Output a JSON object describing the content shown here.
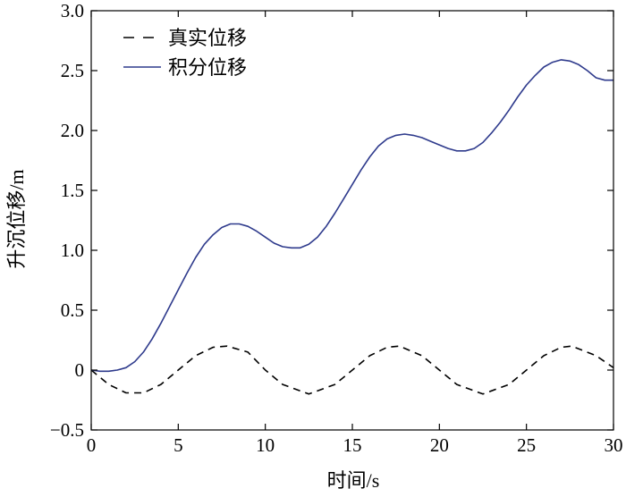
{
  "chart_data": {
    "type": "line",
    "title": "",
    "xlabel": "时间/s",
    "ylabel": "升沉位移/m",
    "xlim": [
      0,
      30
    ],
    "ylim": [
      -0.5,
      3.0
    ],
    "xticks": [
      0,
      5,
      10,
      15,
      20,
      25,
      30
    ],
    "xtick_labels": [
      "0",
      "5",
      "10",
      "15",
      "20",
      "25",
      "30"
    ],
    "yticks": [
      -0.5,
      0,
      0.5,
      1.0,
      1.5,
      2.0,
      2.5,
      3.0
    ],
    "ytick_labels": [
      "−0.5",
      "0",
      "0.5",
      "1.0",
      "1.5",
      "2.0",
      "2.5",
      "3.0"
    ],
    "grid": false,
    "legend_position": "top-left",
    "series": [
      {
        "name": "真实位移",
        "style": "dashed",
        "color": "#000000",
        "x": [
          0,
          1,
          2,
          3,
          4,
          5,
          6,
          7,
          7.8,
          9,
          10,
          11,
          12.5,
          14,
          15,
          16,
          17,
          17.7,
          19,
          20,
          21,
          22.5,
          24,
          25,
          26,
          27,
          27.6,
          29,
          30
        ],
        "y": [
          0,
          -0.12,
          -0.19,
          -0.19,
          -0.12,
          0,
          0.12,
          0.19,
          0.2,
          0.15,
          0,
          -0.12,
          -0.2,
          -0.12,
          0,
          0.12,
          0.19,
          0.2,
          0.12,
          0,
          -0.12,
          -0.2,
          -0.12,
          0,
          0.12,
          0.19,
          0.2,
          0.12,
          0.02
        ]
      },
      {
        "name": "积分位移",
        "style": "solid",
        "color": "#2e3a8c",
        "x": [
          0,
          0.5,
          1,
          1.5,
          2,
          2.5,
          3,
          3.5,
          4,
          4.5,
          5,
          5.5,
          6,
          6.5,
          7,
          7.5,
          8,
          8.5,
          9,
          9.5,
          10,
          10.5,
          11,
          11.5,
          12,
          12.5,
          13,
          13.5,
          14,
          14.5,
          15,
          15.5,
          16,
          16.5,
          17,
          17.5,
          18,
          18.5,
          19,
          19.5,
          20,
          20.5,
          21,
          21.5,
          22,
          22.5,
          23,
          23.5,
          24,
          24.5,
          25,
          25.5,
          26,
          26.5,
          27,
          27.5,
          28,
          28.5,
          29,
          29.5,
          30
        ],
        "y": [
          0,
          -0.01,
          -0.01,
          0,
          0.02,
          0.07,
          0.15,
          0.26,
          0.39,
          0.53,
          0.67,
          0.81,
          0.94,
          1.05,
          1.13,
          1.19,
          1.22,
          1.22,
          1.2,
          1.16,
          1.11,
          1.06,
          1.03,
          1.02,
          1.02,
          1.05,
          1.11,
          1.2,
          1.31,
          1.43,
          1.55,
          1.67,
          1.78,
          1.87,
          1.93,
          1.96,
          1.97,
          1.96,
          1.94,
          1.91,
          1.88,
          1.85,
          1.83,
          1.83,
          1.85,
          1.9,
          1.98,
          2.07,
          2.17,
          2.28,
          2.38,
          2.46,
          2.53,
          2.57,
          2.59,
          2.58,
          2.55,
          2.5,
          2.44,
          2.42,
          2.42
        ]
      }
    ]
  }
}
